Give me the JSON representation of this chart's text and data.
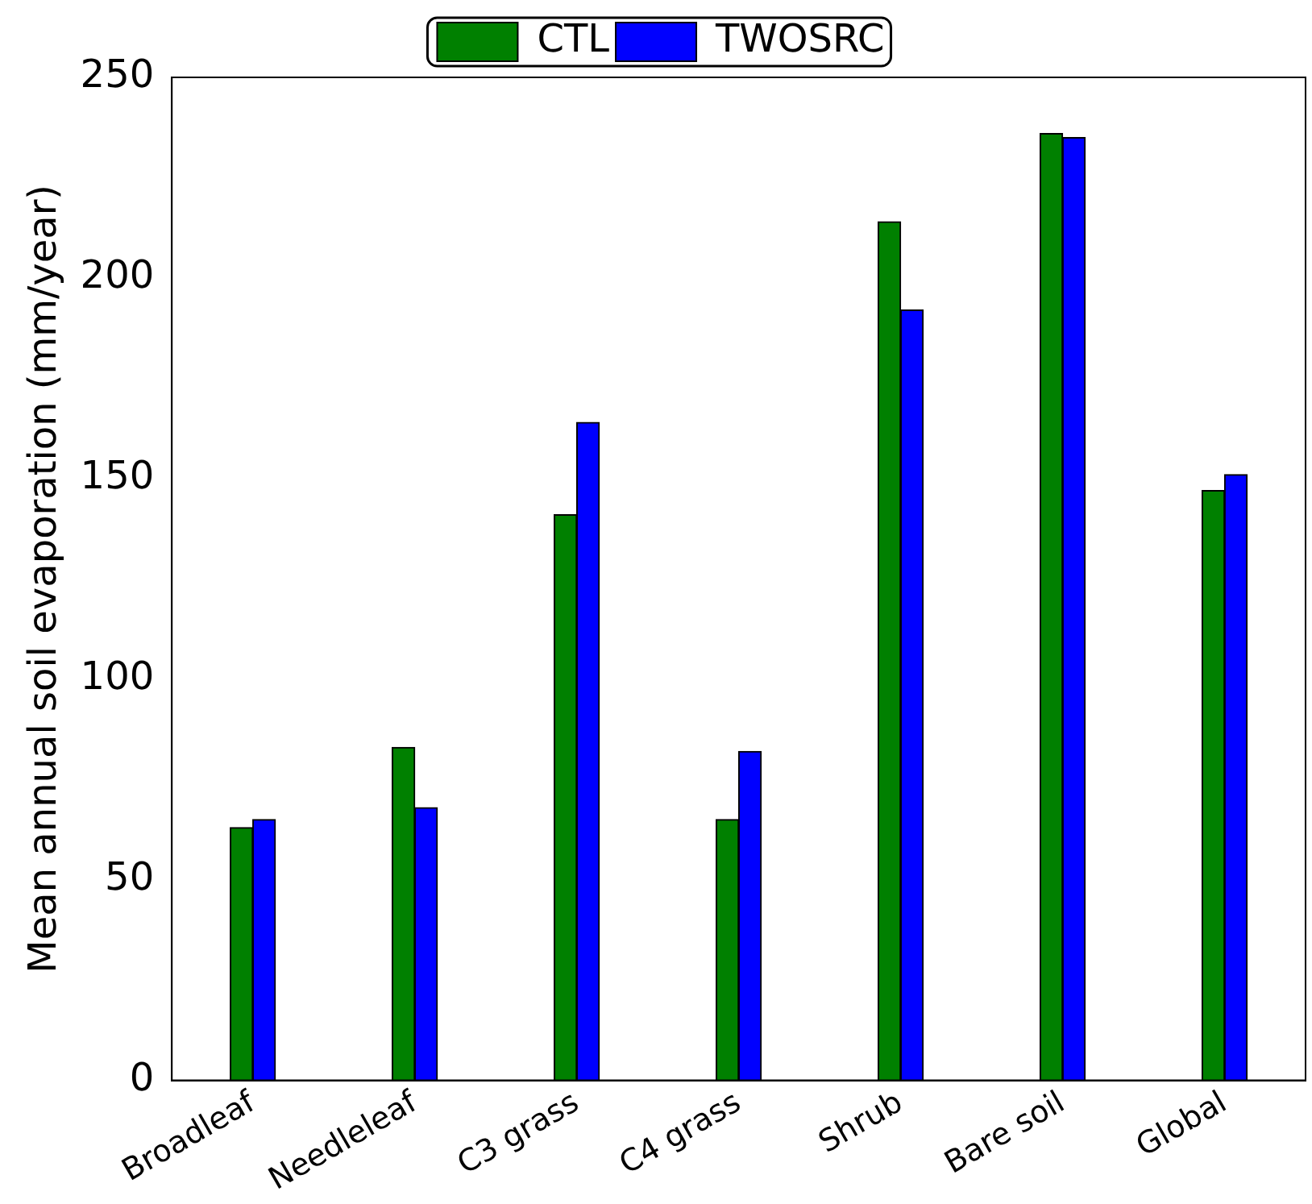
{
  "chart_data": {
    "type": "bar",
    "ylabel": "Mean annual soil evaporation (mm/year)",
    "categories": [
      "Broadleaf",
      "Needleleaf",
      "C3 grass",
      "C4 grass",
      "Shrub",
      "Bare soil",
      "Global"
    ],
    "series": [
      {
        "name": "CTL",
        "color": "#008000",
        "values": [
          63,
          83,
          141,
          65,
          214,
          236,
          147
        ]
      },
      {
        "name": "TWOSRC",
        "color": "#0000ff",
        "values": [
          65,
          68,
          164,
          82,
          192,
          235,
          151
        ]
      }
    ],
    "ylim": [
      0,
      250
    ],
    "yticks": [
      0,
      50,
      100,
      150,
      200,
      250
    ],
    "grid": false,
    "legend": "top"
  }
}
